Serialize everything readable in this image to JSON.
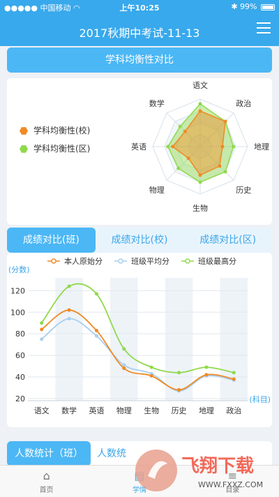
{
  "status_bar": {
    "carrier": "中国移动",
    "time": "上午10:25",
    "battery": "99%",
    "battery_level": 0.99
  },
  "header": {
    "title": "2017秋期中考试-11-13",
    "menu_icon": "menu-icon"
  },
  "balance": {
    "title": "学科均衡性对比",
    "legend": [
      {
        "label": "学科均衡性(校)",
        "color": "#f08a24"
      },
      {
        "label": "学科均衡性(区)",
        "color": "#8fd94c"
      }
    ]
  },
  "chart_data": [
    {
      "type": "radar",
      "title": "",
      "axes": [
        "语文",
        "政治",
        "地理",
        "历史",
        "生物",
        "物理",
        "英语",
        "数学"
      ],
      "rings": 4,
      "max": 100,
      "series": [
        {
          "name": "学科均衡性(区)",
          "color": "#8fd94c",
          "values": [
            90,
            75,
            70,
            75,
            75,
            65,
            68,
            60
          ]
        },
        {
          "name": "学科均衡性(校)",
          "color": "#f08a24",
          "values": [
            75,
            75,
            47,
            58,
            60,
            35,
            58,
            45
          ]
        }
      ]
    },
    {
      "type": "line",
      "title": "",
      "ylabel": "(分数)",
      "xlabel": "(科目)",
      "categories": [
        "语文",
        "数学",
        "英语",
        "物理",
        "生物",
        "历史",
        "地理",
        "政治"
      ],
      "yticks": [
        20,
        40,
        60,
        80,
        100,
        120
      ],
      "ylim": [
        18,
        128
      ],
      "series": [
        {
          "name": "本人原始分",
          "color": "#f08a24",
          "values": [
            84,
            102,
            83,
            48,
            41,
            28,
            42,
            38
          ]
        },
        {
          "name": "班级平均分",
          "color": "#a9cfee",
          "values": [
            75,
            94,
            78,
            51,
            43,
            27,
            41,
            37
          ]
        },
        {
          "name": "班级最高分",
          "color": "#8fd94c",
          "values": [
            90,
            124,
            117,
            66,
            49,
            44,
            49,
            44
          ]
        }
      ]
    }
  ],
  "compare_tabs": [
    {
      "label": "成绩对比(班)",
      "active": true
    },
    {
      "label": "成绩对比(校)",
      "active": false
    },
    {
      "label": "成绩对比(区)",
      "active": false
    }
  ],
  "count_tabs": [
    {
      "label": "人数统计（班）",
      "active": true
    },
    {
      "label": "人数统",
      "active": false
    }
  ],
  "tabbar": [
    {
      "label": "首页",
      "icon": "home-icon",
      "active": false
    },
    {
      "label": "学情",
      "icon": "chart-icon",
      "active": true
    },
    {
      "label": "目录",
      "icon": "list-icon",
      "active": false
    }
  ],
  "watermark": {
    "text": "飞翔下载",
    "url": "WWW.FXXZ.COM"
  }
}
